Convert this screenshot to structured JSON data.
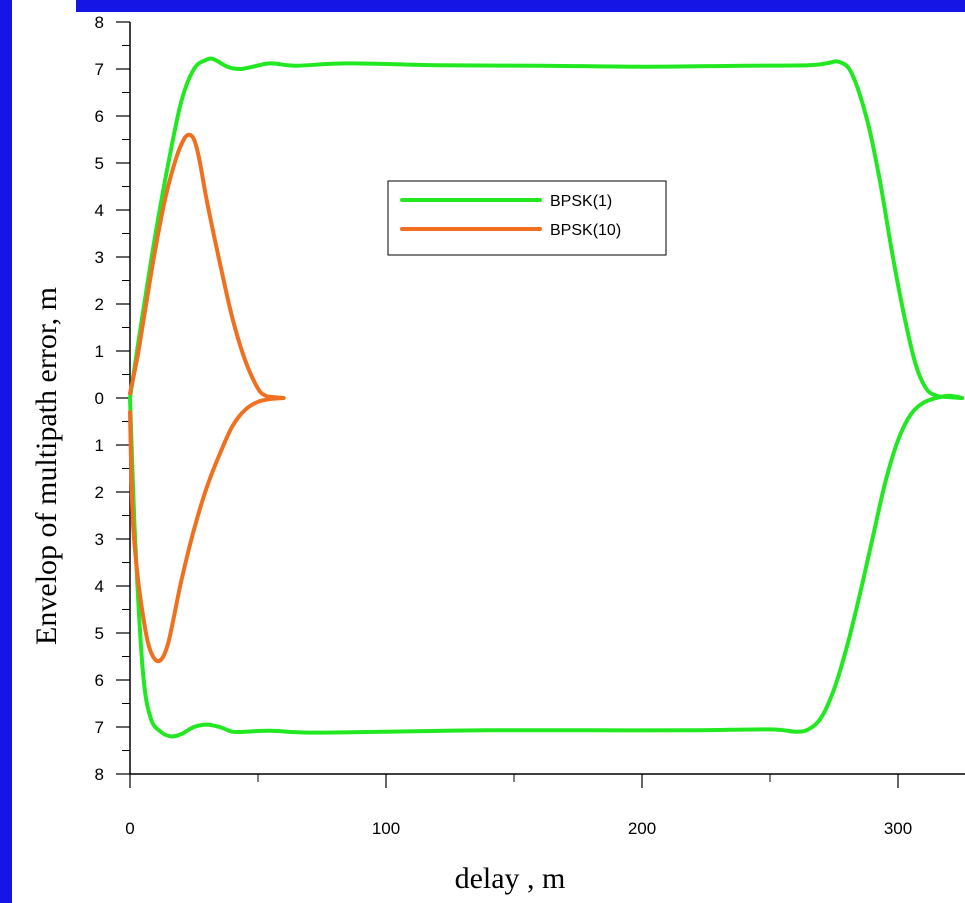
{
  "chart_data": {
    "type": "line",
    "title": "",
    "xlabel": "delay , m",
    "ylabel": "Envelop of multipath error, m",
    "xlim": [
      0,
      325
    ],
    "ylim": [
      -8,
      8
    ],
    "x_ticks": [
      0,
      100,
      200,
      300
    ],
    "x_tick_labels": [
      "0",
      "100",
      "200",
      "300"
    ],
    "y_ticks": [
      8,
      7,
      6,
      5,
      4,
      3,
      2,
      1,
      0,
      -1,
      -2,
      -3,
      -4,
      -5,
      -6,
      -7,
      -8
    ],
    "y_tick_labels": [
      "8",
      "7",
      "6",
      "5",
      "4",
      "3",
      "2",
      "1",
      "0",
      "1",
      "2",
      "3",
      "4",
      "5",
      "6",
      "7",
      "8"
    ],
    "grid": false,
    "legend_position": "upper-center",
    "colors": {
      "BPSK(1)": "#22e822",
      "BPSK(10)": "#f07020",
      "frame": "#1515e6"
    },
    "series": [
      {
        "name": "BPSK(1)",
        "branch": "upper",
        "x": [
          0,
          5,
          10,
          15,
          20,
          25,
          30,
          33,
          38,
          43,
          48,
          55,
          65,
          85,
          120,
          160,
          200,
          240,
          265,
          272,
          277,
          282,
          288,
          293,
          298,
          303,
          307,
          311,
          315,
          320,
          325
        ],
        "y": [
          0,
          1.8,
          3.5,
          5.0,
          6.3,
          7.0,
          7.2,
          7.2,
          7.05,
          7.0,
          7.05,
          7.12,
          7.07,
          7.12,
          7.08,
          7.07,
          7.05,
          7.07,
          7.08,
          7.12,
          7.15,
          6.9,
          5.9,
          4.6,
          3.0,
          1.6,
          0.7,
          0.2,
          0.05,
          0.02,
          0.0
        ]
      },
      {
        "name": "BPSK(1)",
        "branch": "lower",
        "x": [
          0,
          2,
          5,
          8,
          12,
          16,
          20,
          25,
          30,
          35,
          40,
          45,
          55,
          70,
          100,
          140,
          180,
          220,
          250,
          260,
          265,
          270,
          275,
          280,
          285,
          290,
          295,
          300,
          305,
          310,
          315,
          320,
          325
        ],
        "y": [
          0,
          -3.0,
          -5.8,
          -6.8,
          -7.1,
          -7.2,
          -7.15,
          -7.0,
          -6.95,
          -7.0,
          -7.1,
          -7.1,
          -7.08,
          -7.12,
          -7.1,
          -7.07,
          -7.07,
          -7.07,
          -7.05,
          -7.1,
          -7.05,
          -6.8,
          -6.2,
          -5.3,
          -4.2,
          -3.0,
          -1.8,
          -0.9,
          -0.35,
          -0.1,
          0.0,
          0.05,
          0.0
        ]
      },
      {
        "name": "BPSK(10)",
        "branch": "upper",
        "x": [
          0,
          3,
          6,
          10,
          14,
          18,
          21,
          23,
          25,
          27,
          30,
          35,
          40,
          45,
          50,
          53,
          56,
          60
        ],
        "y": [
          0.1,
          0.9,
          1.9,
          3.2,
          4.3,
          5.1,
          5.5,
          5.6,
          5.5,
          5.1,
          4.2,
          2.9,
          1.7,
          0.8,
          0.2,
          0.05,
          0.02,
          0.0
        ]
      },
      {
        "name": "BPSK(10)",
        "branch": "lower",
        "x": [
          0,
          1,
          3,
          5,
          7,
          9,
          11,
          13,
          15,
          17,
          20,
          25,
          30,
          35,
          40,
          45,
          50,
          55,
          60
        ],
        "y": [
          -0.3,
          -2.5,
          -3.8,
          -4.6,
          -5.2,
          -5.5,
          -5.6,
          -5.5,
          -5.2,
          -4.7,
          -3.9,
          -2.8,
          -1.9,
          -1.2,
          -0.6,
          -0.25,
          -0.08,
          -0.02,
          0.0
        ]
      }
    ],
    "legend": [
      {
        "label": "BPSK(1)",
        "color": "#22e822"
      },
      {
        "label": "BPSK(10)",
        "color": "#f07020"
      }
    ]
  }
}
